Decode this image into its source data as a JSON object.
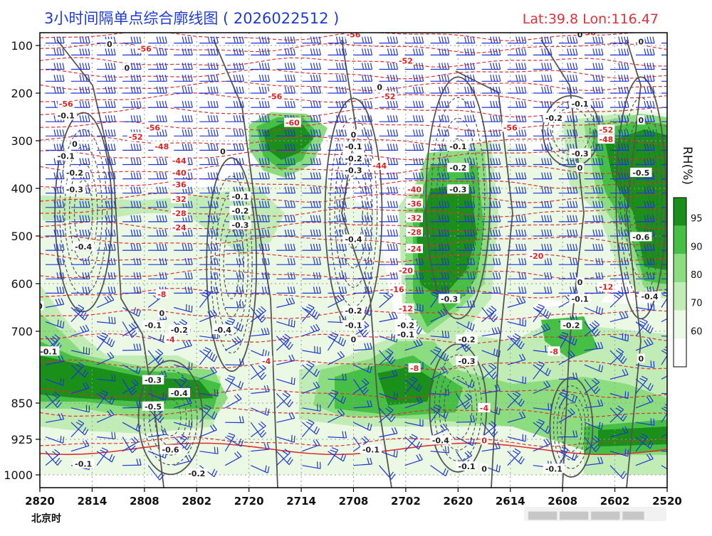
{
  "title": "3小时间隔单点综合廓线图 ( 2026022512 )",
  "location": "Lat:39.8  Lon:116.47",
  "timezone_label": "北京时",
  "colorbar": {
    "label": "RH(%)",
    "ticks": [
      "95",
      "90",
      "80",
      "70",
      "60"
    ]
  },
  "colors": {
    "title": "#1f3bd6",
    "location": "#e0303a",
    "temperature_contours": "#e03030",
    "omega_contours": "#555555",
    "wind_barbs": "#2036d8",
    "rh_60": "#eaf8e4",
    "rh_70": "#c2ecb6",
    "rh_80": "#8cdc80",
    "rh_90": "#45c045",
    "rh_95": "#1a8f1a"
  },
  "chart_data": {
    "type": "heatmap",
    "title": "3小时间隔单点综合廓线图 ( 2026022512 )",
    "x_tick_labels": [
      "2820",
      "2814",
      "2808",
      "2802",
      "2720",
      "2714",
      "2708",
      "2702",
      "2620",
      "2614",
      "2608",
      "2602",
      "2520"
    ],
    "x_axis": "time, reversed (2820 at left, 2520 at right), 3-hour steps",
    "y_tick_labels": [
      "100",
      "200",
      "300",
      "400",
      "500",
      "600",
      "700",
      "850",
      "925",
      "1000"
    ],
    "y_levels_hPa": [
      100,
      200,
      300,
      400,
      500,
      600,
      700,
      850,
      925,
      1000
    ],
    "y_axis": "pressure, reversed (100 top, 1000 bottom)",
    "rh_classes_percent": [
      60,
      70,
      80,
      90,
      95
    ],
    "rh_regions": [
      {
        "x_range": [
          "2820",
          "2802"
        ],
        "levels_hPa": [
          700,
          850
        ],
        "rh": "90-95"
      },
      {
        "x_range": [
          "2720",
          "2714"
        ],
        "levels_hPa": [
          250,
          350
        ],
        "rh": "90-95"
      },
      {
        "x_range": [
          "2702",
          "2620"
        ],
        "levels_hPa": [
          300,
          750
        ],
        "rh": "90-95"
      },
      {
        "x_range": [
          "2608",
          "2520"
        ],
        "levels_hPa": [
          250,
          600
        ],
        "rh": "90-95"
      },
      {
        "x_range": [
          "2714",
          "2602"
        ],
        "levels_hPa": [
          800,
          900
        ],
        "rh": "80-95"
      },
      {
        "x_range": [
          "2608",
          "2520"
        ],
        "levels_hPa": [
          900,
          1000
        ],
        "rh": "90-95"
      }
    ],
    "temperature_labels": [
      "-56",
      "-52",
      "-60",
      "-48",
      "-44",
      "-40",
      "-36",
      "-32",
      "-28",
      "-24",
      "-20",
      "-16",
      "-12",
      "-8",
      "-4",
      "0"
    ],
    "temperature_label_instances": [
      {
        "text": "-56",
        "x": "2808",
        "level": 110
      },
      {
        "text": "-56",
        "x": "2708",
        "level": 80
      },
      {
        "text": "-52",
        "x": "2702",
        "level": 135
      },
      {
        "text": "-56",
        "x": "2605",
        "level": 75
      },
      {
        "text": "-56",
        "x": "2817",
        "level": 225
      },
      {
        "text": "-56",
        "x": "2807",
        "level": 275
      },
      {
        "text": "-52",
        "x": "2809",
        "level": 295
      },
      {
        "text": "-48",
        "x": "2806",
        "level": 315
      },
      {
        "text": "-56",
        "x": "2717",
        "level": 210
      },
      {
        "text": "-60",
        "x": "2715",
        "level": 265
      },
      {
        "text": "-52",
        "x": "2704",
        "level": 210
      },
      {
        "text": "-56",
        "x": "2614",
        "level": 275
      },
      {
        "text": "-52",
        "x": "2603",
        "level": 280
      },
      {
        "text": "-48",
        "x": "2603",
        "level": 300
      },
      {
        "text": "-44",
        "x": "2804",
        "level": 345
      },
      {
        "text": "-40",
        "x": "2804",
        "level": 370
      },
      {
        "text": "-36",
        "x": "2804",
        "level": 395
      },
      {
        "text": "-32",
        "x": "2804",
        "level": 425
      },
      {
        "text": "-28",
        "x": "2804",
        "level": 455
      },
      {
        "text": "-24",
        "x": "2804",
        "level": 485
      },
      {
        "text": "-44",
        "x": "2705",
        "level": 355
      },
      {
        "text": "-40",
        "x": "2701",
        "level": 405
      },
      {
        "text": "-36",
        "x": "2701",
        "level": 435
      },
      {
        "text": "-32",
        "x": "2701",
        "level": 465
      },
      {
        "text": "-28",
        "x": "2701",
        "level": 495
      },
      {
        "text": "-24",
        "x": "2701",
        "level": 530
      },
      {
        "text": "-20",
        "x": "2702",
        "level": 575
      },
      {
        "text": "-16",
        "x": "2703",
        "level": 615
      },
      {
        "text": "-12",
        "x": "2702",
        "level": 655
      },
      {
        "text": "-20",
        "x": "2611",
        "level": 545
      },
      {
        "text": "-12",
        "x": "2603",
        "level": 610
      },
      {
        "text": "-8",
        "x": "2806",
        "level": 625
      },
      {
        "text": "-4",
        "x": "2805",
        "level": 720
      },
      {
        "text": "-4",
        "x": "2718",
        "level": 765
      },
      {
        "text": "-8",
        "x": "2701",
        "level": 780
      },
      {
        "text": "-8",
        "x": "2609",
        "level": 745
      },
      {
        "text": "-4",
        "x": "2617",
        "level": 863
      },
      {
        "text": "0",
        "x": "2617",
        "level": 930
      }
    ],
    "omega_labels": [
      "0",
      "-0.1",
      "-0.2",
      "-0.3",
      "-0.4",
      "-0.5",
      "-0.6"
    ],
    "omega_label_instances": [
      {
        "text": "0",
        "x": "2810",
        "level": 150
      },
      {
        "text": "0",
        "x": "2816",
        "level": 310
      },
      {
        "text": "-0.1",
        "x": "2817",
        "level": 250
      },
      {
        "text": "-0.1",
        "x": "2817",
        "level": 335
      },
      {
        "text": "-0.2",
        "x": "2816",
        "level": 370
      },
      {
        "text": "-0.3",
        "x": "2816",
        "level": 405
      },
      {
        "text": "-0.4",
        "x": "2815",
        "level": 525
      },
      {
        "text": "0",
        "x": "2812",
        "level": 100
      },
      {
        "text": "0",
        "x": "2723",
        "level": 325
      },
      {
        "text": "-0.1",
        "x": "2721",
        "level": 420
      },
      {
        "text": "-0.2",
        "x": "2721",
        "level": 450
      },
      {
        "text": "-0.3",
        "x": "2721",
        "level": 480
      },
      {
        "text": "0",
        "x": "2708",
        "level": 290
      },
      {
        "text": "-0.1",
        "x": "2708",
        "level": 315
      },
      {
        "text": "-0.2",
        "x": "2708",
        "level": 340
      },
      {
        "text": "-0.3",
        "x": "2708",
        "level": 365
      },
      {
        "text": "-0.4",
        "x": "2708",
        "level": 510
      },
      {
        "text": "-0.2",
        "x": "2708",
        "level": 660
      },
      {
        "text": "-0.1",
        "x": "2708",
        "level": 690
      },
      {
        "text": "0",
        "x": "2708",
        "level": 720
      },
      {
        "text": "0",
        "x": "2705",
        "level": 190
      },
      {
        "text": "-0.1",
        "x": "2620",
        "level": 315
      },
      {
        "text": "-0.2",
        "x": "2620",
        "level": 360
      },
      {
        "text": "-0.3",
        "x": "2620",
        "level": 405
      },
      {
        "text": "-0.3",
        "x": "2621",
        "level": 635
      },
      {
        "text": "-0.2",
        "x": "2702",
        "level": 690
      },
      {
        "text": "-0.1",
        "x": "2702",
        "level": 710
      },
      {
        "text": "-0.2",
        "x": "2619",
        "level": 720
      },
      {
        "text": "-0.3",
        "x": "2619",
        "level": 765
      },
      {
        "text": "-0.4",
        "x": "2622",
        "level": 930
      },
      {
        "text": "-0.1",
        "x": "2619",
        "level": 985
      },
      {
        "text": "0",
        "x": "2617",
        "level": 990
      },
      {
        "text": "-0.1",
        "x": "2706",
        "level": 950
      },
      {
        "text": "-0.2",
        "x": "2609",
        "level": 255
      },
      {
        "text": "-0.1",
        "x": "2606",
        "level": 225
      },
      {
        "text": "-0.3",
        "x": "2606",
        "level": 330
      },
      {
        "text": "0",
        "x": "2606",
        "level": 360
      },
      {
        "text": "0",
        "x": "2523",
        "level": 260
      },
      {
        "text": "-0.5",
        "x": "2523",
        "level": 370
      },
      {
        "text": "-0.6",
        "x": "2523",
        "level": 505
      },
      {
        "text": "-0.4",
        "x": "2522",
        "level": 630
      },
      {
        "text": "0",
        "x": "2606",
        "level": 600
      },
      {
        "text": "-0.1",
        "x": "2606",
        "level": 635
      },
      {
        "text": "-0.2",
        "x": "2607",
        "level": 690
      },
      {
        "text": "0",
        "x": "2523",
        "level": 760
      },
      {
        "text": "-0.1",
        "x": "2609",
        "level": 990
      },
      {
        "text": "0",
        "x": "2606",
        "level": 80
      },
      {
        "text": "0",
        "x": "2523",
        "level": 95
      },
      {
        "text": "0",
        "x": "2820",
        "level": 650
      },
      {
        "text": "-0.1",
        "x": "2819",
        "level": 745
      },
      {
        "text": "-0.1",
        "x": "2807",
        "level": 690
      },
      {
        "text": "-0.2",
        "x": "2804",
        "level": 700
      },
      {
        "text": "0",
        "x": "2806",
        "level": 665
      },
      {
        "text": "-0.4",
        "x": "2723",
        "level": 700
      },
      {
        "text": "-0.3",
        "x": "2807",
        "level": 805
      },
      {
        "text": "-0.4",
        "x": "2804",
        "level": 832
      },
      {
        "text": "-0.5",
        "x": "2807",
        "level": 860
      },
      {
        "text": "-0.6",
        "x": "2805",
        "level": 950
      },
      {
        "text": "-0.1",
        "x": "2815",
        "level": 980
      },
      {
        "text": "-0.2",
        "x": "2802",
        "level": 1000
      }
    ],
    "wind_barbs": "blue wind barbs at every time step on ~24 pressure levels; strong westerlies aloft, weak variable winds near surface"
  },
  "axes": {
    "x_ticks": [
      "2820",
      "2814",
      "2808",
      "2802",
      "2720",
      "2714",
      "2708",
      "2702",
      "2620",
      "2614",
      "2608",
      "2602",
      "2520"
    ],
    "y_ticks": [
      "100",
      "200",
      "300",
      "400",
      "500",
      "600",
      "700",
      "850",
      "925",
      "1000"
    ]
  }
}
